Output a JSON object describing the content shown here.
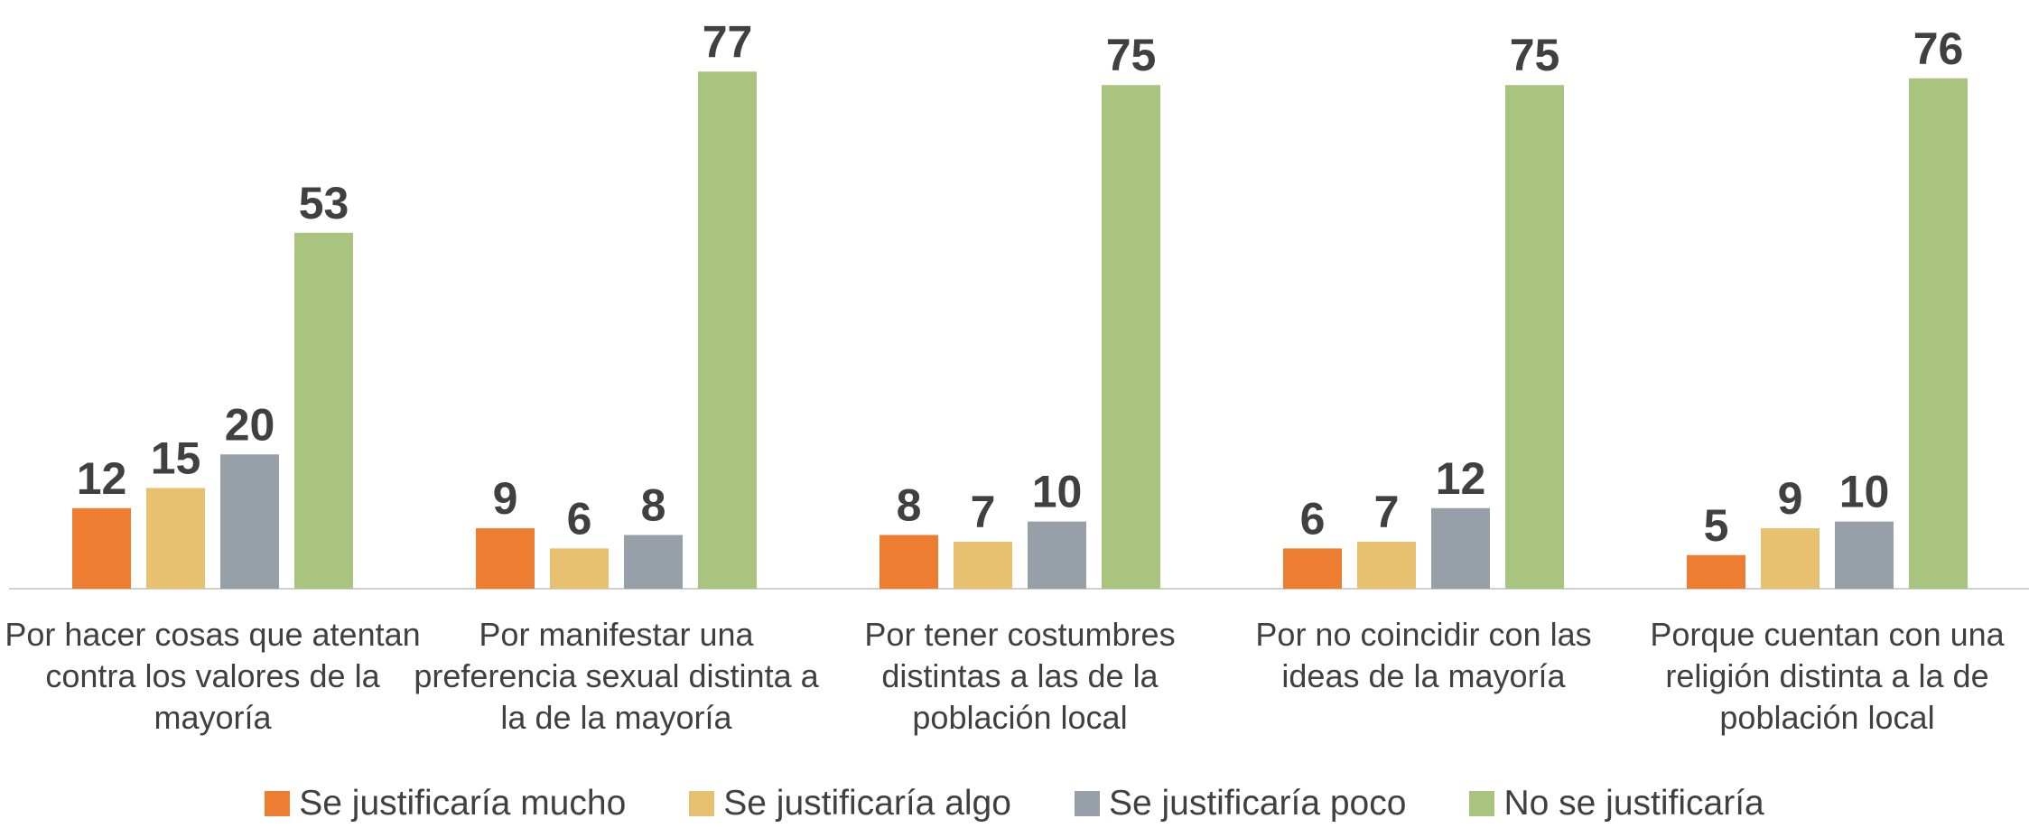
{
  "chart_data": {
    "type": "bar",
    "categories": [
      "Por hacer cosas que atentan contra los valores de la mayoría",
      "Por manifestar una preferencia sexual distinta a la de la mayoría",
      "Por tener costumbres distintas a las de la población local",
      "Por no coincidir con las ideas de la mayoría",
      "Porque cuentan con una religión distinta a la de población local"
    ],
    "series": [
      {
        "name": "Se justificaría mucho",
        "color": "#ED7D31",
        "values": [
          12,
          9,
          8,
          6,
          5
        ]
      },
      {
        "name": "Se justificaría algo",
        "color": "#E8C170",
        "values": [
          15,
          6,
          7,
          7,
          9
        ]
      },
      {
        "name": "Se justificaría poco",
        "color": "#979FA8",
        "values": [
          20,
          8,
          10,
          12,
          10
        ]
      },
      {
        "name": "No se justificaría",
        "color": "#A9C47F",
        "values": [
          53,
          77,
          75,
          75,
          76
        ]
      }
    ],
    "ylim": [
      0,
      80
    ],
    "legend": "bottom"
  }
}
